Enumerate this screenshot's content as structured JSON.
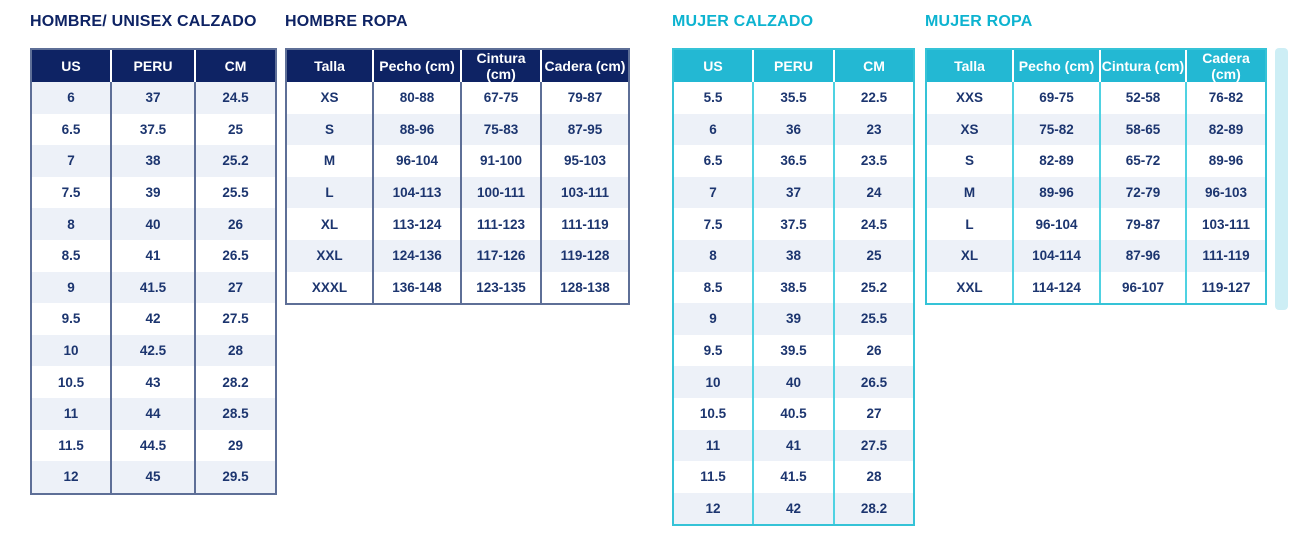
{
  "colors": {
    "navy_header": "#0e2364",
    "navy_border": "#5e6f97",
    "cyan_header": "#23b8d3",
    "cyan_title": "#0db3d0",
    "cyan_border": "#4fd2e2",
    "shaded_row": "#edf1f8",
    "body_text": "#1c356f"
  },
  "chart_data": [
    {
      "type": "table",
      "title": "HOMBRE/ UNISEX CALZADO",
      "theme": "navy",
      "first_row_shaded": true,
      "columns": [
        "US",
        "PERU",
        "CM"
      ],
      "rows": [
        [
          "6",
          "37",
          "24.5"
        ],
        [
          "6.5",
          "37.5",
          "25"
        ],
        [
          "7",
          "38",
          "25.2"
        ],
        [
          "7.5",
          "39",
          "25.5"
        ],
        [
          "8",
          "40",
          "26"
        ],
        [
          "8.5",
          "41",
          "26.5"
        ],
        [
          "9",
          "41.5",
          "27"
        ],
        [
          "9.5",
          "42",
          "27.5"
        ],
        [
          "10",
          "42.5",
          "28"
        ],
        [
          "10.5",
          "43",
          "28.2"
        ],
        [
          "11",
          "44",
          "28.5"
        ],
        [
          "11.5",
          "44.5",
          "29"
        ],
        [
          "12",
          "45",
          "29.5"
        ]
      ]
    },
    {
      "type": "table",
      "title": "HOMBRE ROPA",
      "theme": "navy",
      "first_row_shaded": false,
      "columns": [
        "Talla",
        "Pecho (cm)",
        "Cintura (cm)",
        "Cadera (cm)"
      ],
      "rows": [
        [
          "XS",
          "80-88",
          "67-75",
          "79-87"
        ],
        [
          "S",
          "88-96",
          "75-83",
          "87-95"
        ],
        [
          "M",
          "96-104",
          "91-100",
          "95-103"
        ],
        [
          "L",
          "104-113",
          "100-111",
          "103-111"
        ],
        [
          "XL",
          "113-124",
          "111-123",
          "111-119"
        ],
        [
          "XXL",
          "124-136",
          "117-126",
          "119-128"
        ],
        [
          "XXXL",
          "136-148",
          "123-135",
          "128-138"
        ]
      ]
    },
    {
      "type": "table",
      "title": "MUJER CALZADO",
      "theme": "cyan",
      "first_row_shaded": false,
      "columns": [
        "US",
        "PERU",
        "CM"
      ],
      "rows": [
        [
          "5.5",
          "35.5",
          "22.5"
        ],
        [
          "6",
          "36",
          "23"
        ],
        [
          "6.5",
          "36.5",
          "23.5"
        ],
        [
          "7",
          "37",
          "24"
        ],
        [
          "7.5",
          "37.5",
          "24.5"
        ],
        [
          "8",
          "38",
          "25"
        ],
        [
          "8.5",
          "38.5",
          "25.2"
        ],
        [
          "9",
          "39",
          "25.5"
        ],
        [
          "9.5",
          "39.5",
          "26"
        ],
        [
          "10",
          "40",
          "26.5"
        ],
        [
          "10.5",
          "40.5",
          "27"
        ],
        [
          "11",
          "41",
          "27.5"
        ],
        [
          "11.5",
          "41.5",
          "28"
        ],
        [
          "12",
          "42",
          "28.2"
        ]
      ]
    },
    {
      "type": "table",
      "title": "MUJER ROPA",
      "theme": "cyan",
      "first_row_shaded": false,
      "columns": [
        "Talla",
        "Pecho (cm)",
        "Cintura (cm)",
        "Cadera (cm)"
      ],
      "rows": [
        [
          "XXS",
          "69-75",
          "52-58",
          "76-82"
        ],
        [
          "XS",
          "75-82",
          "58-65",
          "82-89"
        ],
        [
          "S",
          "82-89",
          "65-72",
          "89-96"
        ],
        [
          "M",
          "89-96",
          "72-79",
          "96-103"
        ],
        [
          "L",
          "96-104",
          "79-87",
          "103-111"
        ],
        [
          "XL",
          "104-114",
          "87-96",
          "111-119"
        ],
        [
          "XXL",
          "114-124",
          "96-107",
          "119-127"
        ]
      ]
    }
  ]
}
